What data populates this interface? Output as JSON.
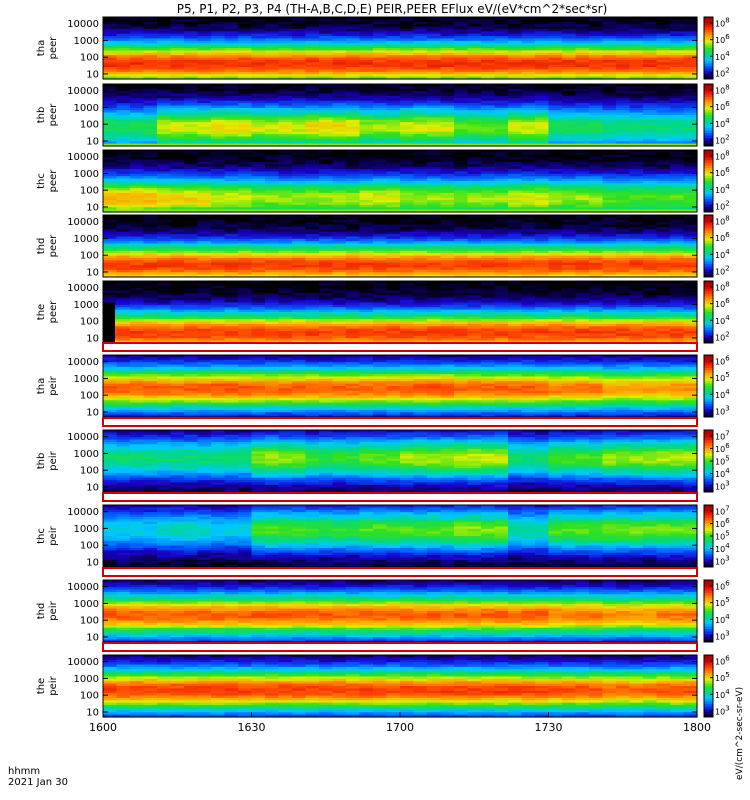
{
  "chart_data": {
    "type": "heatmap",
    "title": "P5, P1, P2, P3, P4 (TH-A,B,C,D,E) PEIR,PEER EFlux eV/(eV*cm^2*sec*sr)",
    "x_ticks": [
      "1600",
      "1630",
      "1700",
      "1730",
      "1800"
    ],
    "xlim": [
      "16:00",
      "18:00"
    ],
    "x_corner_labels": [
      "hhmm",
      "2021 Jan 30"
    ],
    "y_ticks": [
      "10",
      "100",
      "1000",
      "10000"
    ],
    "y_scale": "log",
    "ylim": [
      5,
      25000
    ],
    "colorbar_label": "eV/(cm^2-sec-sr-eV)",
    "colorscale": [
      "#000000",
      "#1a00c8",
      "#0060ff",
      "#00c8ff",
      "#00d888",
      "#30e020",
      "#e0f000",
      "#ffa000",
      "#ff4000",
      "#d00000",
      "#a00000"
    ],
    "panels": [
      {
        "id": "tha-peer",
        "probe": "tha",
        "species": "peer",
        "cbar_ticks": [
          "10^2",
          "10^4",
          "10^6",
          "10^8"
        ],
        "band_center_decade": 1.6,
        "band_intensity": 0.92,
        "profile": [
          0.9,
          0.9,
          0.9,
          0.9,
          0.9,
          0.9,
          0.9,
          0.9,
          0.9,
          0.9,
          0.9,
          0.9
        ],
        "black_cutoff": false
      },
      {
        "id": "thb-peer",
        "probe": "thb",
        "species": "peer",
        "cbar_ticks": [
          "10^2",
          "10^4",
          "10^6",
          "10^8"
        ],
        "band_center_decade": 1.8,
        "band_intensity": 0.75,
        "profile": [
          0.6,
          0.8,
          0.85,
          0.8,
          0.85,
          0.75,
          0.8,
          0.7,
          0.8,
          0.6,
          0.55,
          0.55
        ],
        "black_cutoff": true
      },
      {
        "id": "thc-peer",
        "probe": "thc",
        "species": "peer",
        "cbar_ticks": [
          "10^2",
          "10^4",
          "10^6",
          "10^8"
        ],
        "band_center_decade": 1.5,
        "band_intensity": 0.8,
        "profile": [
          0.85,
          0.8,
          0.75,
          0.7,
          0.7,
          0.75,
          0.7,
          0.7,
          0.75,
          0.7,
          0.65,
          0.65
        ],
        "black_cutoff": true
      },
      {
        "id": "thd-peer",
        "probe": "thd",
        "species": "peer",
        "cbar_ticks": [
          "10^2",
          "10^4",
          "10^6",
          "10^8"
        ],
        "band_center_decade": 1.4,
        "band_intensity": 0.9,
        "profile": [
          0.9,
          0.9,
          0.9,
          0.9,
          0.9,
          0.9,
          0.9,
          0.9,
          0.9,
          0.9,
          0.9,
          0.9
        ],
        "black_cutoff": false
      },
      {
        "id": "the-peer",
        "probe": "the",
        "species": "peer",
        "cbar_ticks": [
          "10^2",
          "10^4",
          "10^6",
          "10^8"
        ],
        "band_center_decade": 1.3,
        "band_intensity": 0.9,
        "profile": [
          0.9,
          0.9,
          0.9,
          0.9,
          0.9,
          0.9,
          0.9,
          0.9,
          0.9,
          0.9,
          0.9,
          0.9
        ],
        "black_cutoff": false
      },
      {
        "id": "tha-peir",
        "probe": "tha",
        "species": "peir",
        "cbar_ticks": [
          "10^3",
          "10^4",
          "10^5",
          "10^6"
        ],
        "band_center_decade": 2.4,
        "band_intensity": 0.88,
        "profile": [
          0.88,
          0.88,
          0.9,
          0.88,
          0.88,
          0.88,
          0.9,
          0.88,
          0.88,
          0.85,
          0.8,
          0.82
        ],
        "black_cutoff": false
      },
      {
        "id": "thb-peir",
        "probe": "thb",
        "species": "peir",
        "cbar_ticks": [
          "10^3",
          "10^4",
          "10^5",
          "10^6",
          "10^7"
        ],
        "band_center_decade": 2.7,
        "band_intensity": 0.7,
        "profile": [
          0.6,
          0.6,
          0.62,
          0.8,
          0.7,
          0.75,
          0.82,
          0.85,
          0.6,
          0.72,
          0.8,
          0.82
        ],
        "black_cutoff": false
      },
      {
        "id": "thc-peir",
        "probe": "thc",
        "species": "peir",
        "cbar_ticks": [
          "10^3",
          "10^4",
          "10^5",
          "10^6",
          "10^7"
        ],
        "band_center_decade": 2.9,
        "band_intensity": 0.65,
        "profile": [
          0.5,
          0.55,
          0.5,
          0.78,
          0.75,
          0.8,
          0.8,
          0.85,
          0.6,
          0.8,
          0.82,
          0.82
        ],
        "black_cutoff": false
      },
      {
        "id": "thd-peir",
        "probe": "thd",
        "species": "peir",
        "cbar_ticks": [
          "10^3",
          "10^4",
          "10^5",
          "10^6"
        ],
        "band_center_decade": 2.3,
        "band_intensity": 0.88,
        "profile": [
          0.88,
          0.88,
          0.88,
          0.88,
          0.88,
          0.88,
          0.88,
          0.88,
          0.88,
          0.85,
          0.82,
          0.85
        ],
        "black_cutoff": false
      },
      {
        "id": "the-peir",
        "probe": "the",
        "species": "peir",
        "cbar_ticks": [
          "10^3",
          "10^4",
          "10^5",
          "10^6"
        ],
        "band_center_decade": 2.3,
        "band_intensity": 0.9,
        "profile": [
          0.9,
          0.9,
          0.9,
          0.9,
          0.9,
          0.9,
          0.9,
          0.9,
          0.9,
          0.88,
          0.85,
          0.88
        ],
        "black_cutoff": false
      }
    ]
  }
}
